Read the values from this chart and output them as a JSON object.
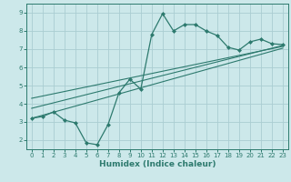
{
  "title": "",
  "xlabel": "Humidex (Indice chaleur)",
  "ylabel": "",
  "bg_color": "#cce8ea",
  "grid_color": "#aacdd2",
  "line_color": "#2d7a6e",
  "xlim": [
    -0.5,
    23.5
  ],
  "ylim": [
    1.5,
    9.5
  ],
  "xticks": [
    0,
    1,
    2,
    3,
    4,
    5,
    6,
    7,
    8,
    9,
    10,
    11,
    12,
    13,
    14,
    15,
    16,
    17,
    18,
    19,
    20,
    21,
    22,
    23
  ],
  "yticks": [
    2,
    3,
    4,
    5,
    6,
    7,
    8,
    9
  ],
  "curve_x": [
    0,
    1,
    2,
    3,
    4,
    5,
    6,
    7,
    8,
    9,
    10,
    11,
    12,
    13,
    14,
    15,
    16,
    17,
    18,
    19,
    20,
    21,
    22,
    23
  ],
  "curve_y": [
    3.2,
    3.3,
    3.55,
    3.1,
    2.95,
    1.85,
    1.75,
    2.85,
    4.6,
    5.35,
    4.8,
    7.8,
    8.95,
    8.0,
    8.35,
    8.35,
    8.0,
    7.75,
    7.1,
    6.95,
    7.4,
    7.55,
    7.3,
    7.25
  ],
  "trend1_x": [
    0,
    23
  ],
  "trend1_y": [
    3.2,
    7.05
  ],
  "trend2_x": [
    0,
    23
  ],
  "trend2_y": [
    3.75,
    7.2
  ],
  "trend3_x": [
    0,
    23
  ],
  "trend3_y": [
    4.3,
    7.15
  ]
}
